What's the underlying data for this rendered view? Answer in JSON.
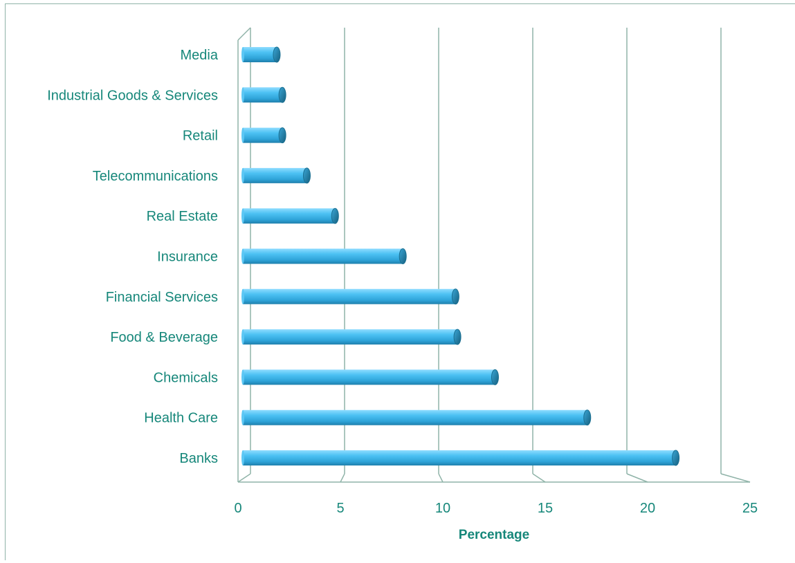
{
  "chart_data": {
    "type": "bar",
    "orientation": "horizontal",
    "style": "3d-cylinder",
    "categories": [
      "Banks",
      "Health Care",
      "Chemicals",
      "Food & Beverage",
      "Financial Services",
      "Insurance",
      "Real Estate",
      "Telecommunications",
      "Retail",
      "Industrial Goods & Services",
      "Media"
    ],
    "values": [
      23.0,
      18.3,
      13.4,
      11.4,
      11.3,
      8.5,
      4.9,
      3.4,
      2.1,
      2.1,
      1.8
    ],
    "xlabel": "Percentage",
    "ylabel": "",
    "xlim": [
      0,
      25
    ],
    "xticks": [
      "0",
      "5",
      "10",
      "15",
      "20",
      "25"
    ],
    "grid": true,
    "bar_color": "#45b6e8",
    "bar_edge_color": "#1a6f91",
    "gridline_color": "#8fb3a8",
    "text_color": "#16877a"
  }
}
